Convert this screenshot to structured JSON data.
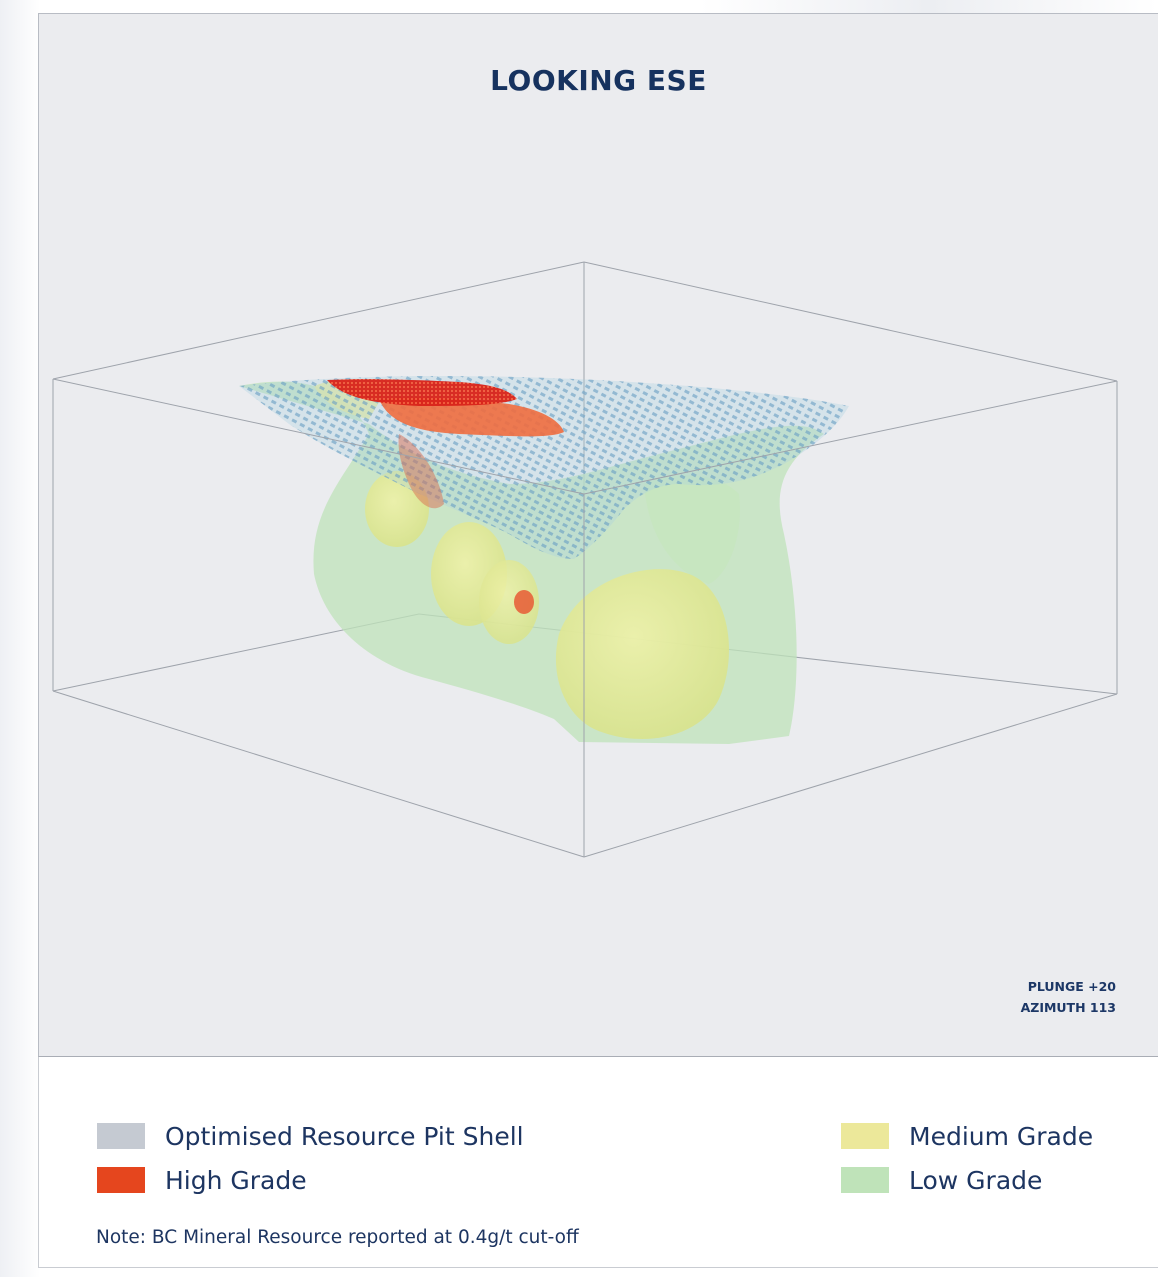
{
  "view": {
    "title": "LOOKING ESE",
    "plunge": "PLUNGE +20",
    "azimuth": "AZIMUTH 113"
  },
  "legend": {
    "items": [
      {
        "label": "Optimised Resource Pit Shell",
        "color": "#c5cad2"
      },
      {
        "label": "High Grade",
        "color": "#e5461e"
      },
      {
        "label": "Medium Grade",
        "color": "#ece89a"
      },
      {
        "label": "Low Grade",
        "color": "#bfe3b9"
      }
    ],
    "note": "Note: BC Mineral Resource reported at 0.4g/t cut-off"
  },
  "colors": {
    "background": "#ebecef",
    "title": "#16325f",
    "pit_shell_blue": "#8fbcd6",
    "high_grade": "#e5461e",
    "medium_grade": "#e8e89a",
    "low_grade": "#bfe3b9"
  }
}
